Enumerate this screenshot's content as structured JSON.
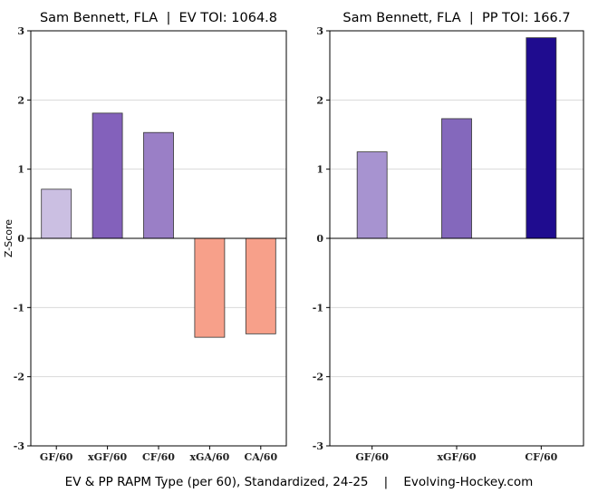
{
  "y_axis_label": "Z-Score",
  "footer": "EV & PP RAPM Type (per 60), Standardized, 24-25    |    Evolving-Hockey.com",
  "chart_data": [
    {
      "type": "bar",
      "title": "Sam Bennett, FLA  |  EV TOI: 1064.8",
      "categories": [
        "GF/60",
        "xGF/60",
        "CF/60",
        "xGA/60",
        "CA/60"
      ],
      "values": [
        0.71,
        1.81,
        1.53,
        -1.43,
        -1.38
      ],
      "colors": [
        "#cbbfe2",
        "#8361bb",
        "#9a7fc6",
        "#f7a08a",
        "#f7a08a"
      ],
      "ylim": [
        -3,
        3
      ],
      "yticks": [
        "-3",
        "-2",
        "-1",
        "0",
        "1",
        "2",
        "3"
      ],
      "grid": true
    },
    {
      "type": "bar",
      "title": "Sam Bennett, FLA  |  PP TOI: 166.7",
      "categories": [
        "GF/60",
        "xGF/60",
        "CF/60"
      ],
      "values": [
        1.25,
        1.73,
        2.9
      ],
      "colors": [
        "#a793d0",
        "#8468bc",
        "#1f0c8f"
      ],
      "ylim": [
        -3,
        3
      ],
      "yticks": [
        "-3",
        "-2",
        "-1",
        "0",
        "1",
        "2",
        "3"
      ],
      "grid": true
    }
  ]
}
